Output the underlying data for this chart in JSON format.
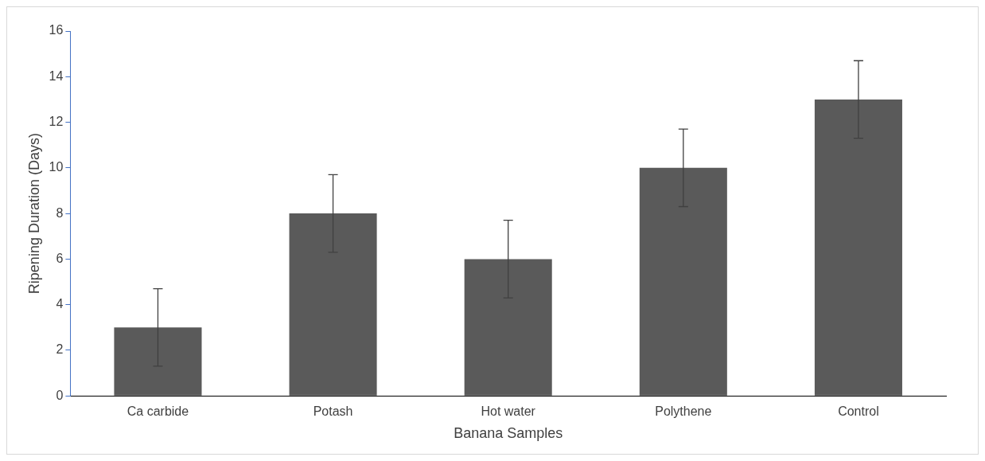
{
  "chart_data": {
    "type": "bar",
    "xlabel": "Banana Samples",
    "ylabel": "Ripening Duration (Days)",
    "categories": [
      "Ca carbide",
      "Potash",
      "Hot water",
      "Polythene",
      "Control"
    ],
    "values": [
      3,
      8,
      6,
      10,
      13
    ],
    "errors": [
      1.7,
      1.7,
      1.7,
      1.7,
      1.7
    ],
    "color": "#5a5a5a",
    "ylim": [
      0,
      16
    ],
    "yticks": [
      0,
      2,
      4,
      6,
      8,
      10,
      12,
      14,
      16
    ],
    "grid": false,
    "legend": false
  }
}
